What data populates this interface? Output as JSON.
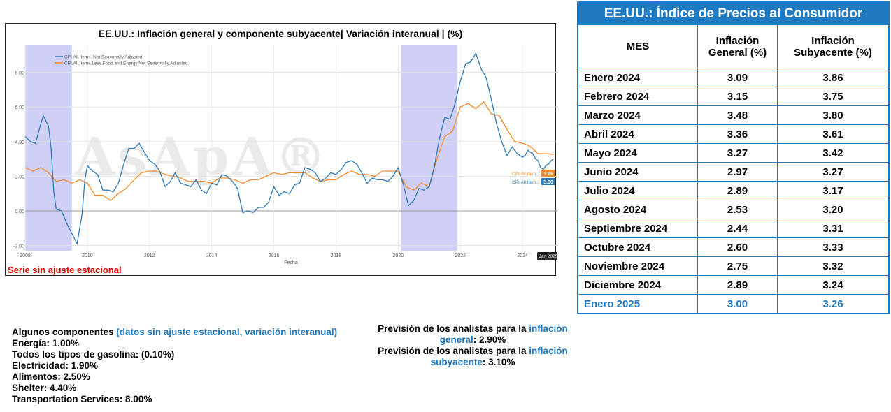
{
  "chart_data": {
    "type": "line",
    "title": "EE.UU.: Inflación general y componente subyacente| Variación interanual | (%)",
    "xlabel": "Fecha",
    "ylabel": "",
    "xlim": [
      2008.0,
      2025.1
    ],
    "ylim": [
      -2.3,
      9.6
    ],
    "x_ticks": [
      "2008",
      "2010",
      "2012",
      "2014",
      "2016",
      "2018",
      "2020",
      "2022",
      "2024"
    ],
    "y_ticks": [
      "8.00",
      "6.00",
      "4.00",
      "2.00",
      "0.00",
      "-2.00"
    ],
    "grid": true,
    "legend_position": "top-left",
    "recession_shading": [
      [
        2008.0,
        2009.5
      ],
      [
        2020.1,
        2021.9
      ]
    ],
    "watermark": "AsApA®",
    "end_marker_label": "Jan 2025",
    "series": [
      {
        "name": "CPI.All.Items..Not.Seasonally.Adjusted.",
        "short_label": "CPI.All.Item...",
        "end_value_label": "3.00",
        "color": "#2e7ab8",
        "x": [
          2008.0,
          2008.17,
          2008.33,
          2008.5,
          2008.58,
          2008.75,
          2008.83,
          2008.92,
          2009.0,
          2009.17,
          2009.33,
          2009.5,
          2009.67,
          2009.83,
          2009.92,
          2010.0,
          2010.17,
          2010.33,
          2010.5,
          2010.67,
          2010.83,
          2011.0,
          2011.17,
          2011.33,
          2011.5,
          2011.67,
          2011.83,
          2012.0,
          2012.17,
          2012.33,
          2012.5,
          2012.67,
          2012.83,
          2013.0,
          2013.17,
          2013.33,
          2013.5,
          2013.67,
          2013.83,
          2014.0,
          2014.17,
          2014.33,
          2014.5,
          2014.67,
          2014.83,
          2015.0,
          2015.17,
          2015.33,
          2015.5,
          2015.67,
          2015.83,
          2016.0,
          2016.17,
          2016.33,
          2016.5,
          2016.67,
          2016.83,
          2017.0,
          2017.17,
          2017.33,
          2017.5,
          2017.67,
          2017.83,
          2018.0,
          2018.17,
          2018.33,
          2018.5,
          2018.67,
          2018.83,
          2019.0,
          2019.17,
          2019.33,
          2019.5,
          2019.67,
          2019.83,
          2020.0,
          2020.17,
          2020.33,
          2020.5,
          2020.67,
          2020.83,
          2021.0,
          2021.17,
          2021.33,
          2021.5,
          2021.67,
          2021.83,
          2022.0,
          2022.17,
          2022.33,
          2022.5,
          2022.67,
          2022.83,
          2023.0,
          2023.17,
          2023.33,
          2023.5,
          2023.67,
          2023.83,
          2024.0,
          2024.08,
          2024.17,
          2024.25,
          2024.33,
          2024.42,
          2024.5,
          2024.58,
          2024.67,
          2024.75,
          2024.83,
          2024.92,
          2025.0
        ],
        "y": [
          4.3,
          4.0,
          3.9,
          5.0,
          5.5,
          4.9,
          3.7,
          1.1,
          0.1,
          0.0,
          -0.7,
          -1.3,
          -1.9,
          -0.2,
          1.8,
          2.6,
          2.3,
          2.1,
          1.2,
          1.2,
          1.1,
          1.6,
          2.7,
          3.6,
          3.6,
          3.9,
          3.4,
          2.9,
          2.7,
          2.3,
          1.4,
          1.7,
          2.2,
          1.6,
          1.5,
          1.4,
          1.8,
          1.2,
          1.0,
          1.6,
          1.5,
          2.1,
          2.0,
          1.7,
          1.3,
          -0.1,
          0.0,
          -0.1,
          0.2,
          0.2,
          0.5,
          1.4,
          0.9,
          1.1,
          1.0,
          1.5,
          1.6,
          2.5,
          2.4,
          2.2,
          1.7,
          1.9,
          2.2,
          2.1,
          2.4,
          2.8,
          2.9,
          2.7,
          2.2,
          1.6,
          1.9,
          1.8,
          1.8,
          1.7,
          2.0,
          2.5,
          1.5,
          0.3,
          0.6,
          1.3,
          1.2,
          1.4,
          2.6,
          4.2,
          5.4,
          5.3,
          6.2,
          7.5,
          8.5,
          8.6,
          9.1,
          8.2,
          7.7,
          6.4,
          5.0,
          4.0,
          3.2,
          3.7,
          3.3,
          3.1,
          3.2,
          3.5,
          3.4,
          3.3,
          3.0,
          2.9,
          2.5,
          2.4,
          2.6,
          2.7,
          2.9,
          3.0
        ]
      },
      {
        "name": "CPI.All.Items.Less.Food.and.Energy.Not.Seasonally.Adjusted.",
        "short_label": "CPI.All.Item...",
        "end_value_label": "3.26",
        "color": "#f5892a",
        "x": [
          2008.0,
          2008.25,
          2008.5,
          2008.75,
          2009.0,
          2009.25,
          2009.5,
          2009.75,
          2010.0,
          2010.25,
          2010.5,
          2010.75,
          2011.0,
          2011.25,
          2011.5,
          2011.75,
          2012.0,
          2012.25,
          2012.5,
          2012.75,
          2013.0,
          2013.25,
          2013.5,
          2013.75,
          2014.0,
          2014.25,
          2014.5,
          2014.75,
          2015.0,
          2015.25,
          2015.5,
          2015.75,
          2016.0,
          2016.25,
          2016.5,
          2016.75,
          2017.0,
          2017.25,
          2017.5,
          2017.75,
          2018.0,
          2018.25,
          2018.5,
          2018.75,
          2019.0,
          2019.25,
          2019.5,
          2019.75,
          2020.0,
          2020.25,
          2020.5,
          2020.75,
          2021.0,
          2021.25,
          2021.5,
          2021.75,
          2022.0,
          2022.25,
          2022.5,
          2022.75,
          2023.0,
          2023.25,
          2023.5,
          2023.75,
          2024.0,
          2024.17,
          2024.33,
          2024.5,
          2024.67,
          2024.83,
          2025.0
        ],
        "y": [
          2.5,
          2.3,
          2.5,
          2.2,
          1.7,
          1.8,
          1.6,
          1.8,
          1.6,
          0.9,
          0.9,
          0.6,
          1.0,
          1.3,
          1.8,
          2.2,
          2.3,
          2.3,
          2.1,
          2.0,
          1.9,
          1.7,
          1.7,
          1.7,
          1.6,
          1.9,
          1.9,
          1.8,
          1.6,
          1.8,
          1.8,
          2.0,
          2.2,
          2.1,
          2.2,
          2.2,
          2.2,
          1.9,
          1.7,
          1.8,
          1.8,
          2.1,
          2.3,
          2.1,
          2.1,
          2.0,
          2.3,
          2.3,
          2.3,
          1.4,
          1.2,
          1.6,
          1.4,
          3.0,
          4.3,
          4.6,
          6.0,
          6.2,
          5.9,
          6.3,
          5.6,
          5.5,
          4.7,
          4.0,
          3.9,
          3.8,
          3.6,
          3.3,
          3.3,
          3.3,
          3.26
        ]
      }
    ]
  },
  "chart_note": "Serie sin ajuste estacional",
  "table": {
    "title": "EE.UU.: Índice de Precios al Consumidor",
    "col_headers": [
      "MES",
      "Inflación General (%)",
      "Inflación Subyacente (%)"
    ],
    "rows": [
      {
        "month": "Enero 2024",
        "general": "3.09",
        "core": "3.86"
      },
      {
        "month": "Febrero 2024",
        "general": "3.15",
        "core": "3.75"
      },
      {
        "month": "Marzo 2024",
        "general": "3.48",
        "core": "3.80"
      },
      {
        "month": "Abril 2024",
        "general": "3.36",
        "core": "3.61"
      },
      {
        "month": "Mayo 2024",
        "general": "3.27",
        "core": "3.42"
      },
      {
        "month": "Junio 2024",
        "general": "2.97",
        "core": "3.27"
      },
      {
        "month": "Julio 2024",
        "general": "2.89",
        "core": "3.17"
      },
      {
        "month": "Agosto 2024",
        "general": "2.53",
        "core": "3.20"
      },
      {
        "month": "Septiembre 2024",
        "general": "2.44",
        "core": "3.31"
      },
      {
        "month": "Octubre 2024",
        "general": "2.60",
        "core": "3.33"
      },
      {
        "month": "Noviembre 2024",
        "general": "2.75",
        "core": "3.32"
      },
      {
        "month": "Diciembre 2024",
        "general": "2.89",
        "core": "3.24"
      },
      {
        "month": "Enero 2025",
        "general": "3.00",
        "core": "3.26"
      }
    ]
  },
  "components": {
    "heading": "Algunos componentes",
    "heading_note": "(datos sin ajuste estacional, variación interanual)",
    "items": [
      "Energía: 1.00%",
      "Todos los tipos de gasolina: (0.10%)",
      "Electricidad: 1.90%",
      "Alimentos: 2.50%",
      "Shelter: 4.40%",
      "Transportation Services: 8.00%"
    ]
  },
  "forecasts": {
    "general_prefix": "Previsión de los analistas para la",
    "general_highlight_1": "inflación",
    "general_highlight_2": "general",
    "general_value": ": 2.90%",
    "core_prefix": "Previsión de los analistas para la",
    "core_highlight_1": "inflación",
    "core_highlight_2": "subyacente",
    "core_value": ": 3.10%"
  }
}
